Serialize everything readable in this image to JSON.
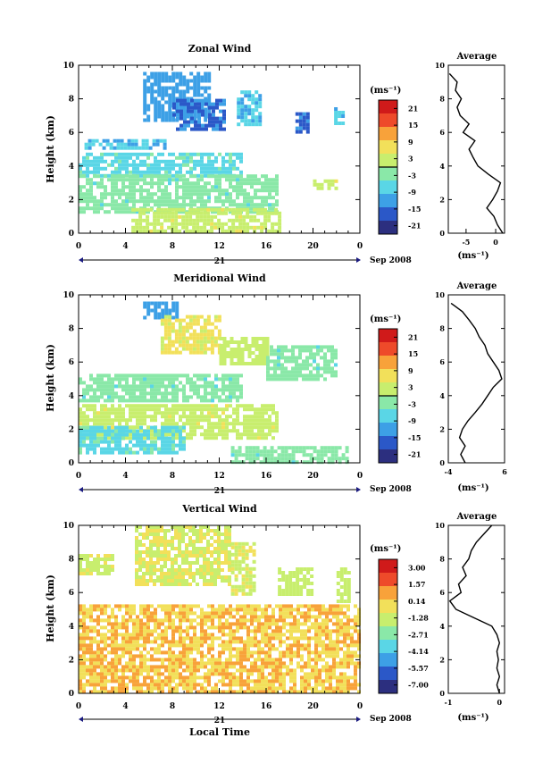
{
  "shared": {
    "ylabel": "Height (km)",
    "units_label": "(ms⁻¹)",
    "avg_xlabel": "(ms⁻¹)",
    "avg_title": "Average",
    "date_label": "21",
    "month_label": "Sep 2008",
    "xticks": [
      "0",
      "4",
      "8",
      "12",
      "16",
      "20",
      "0"
    ],
    "yticks": [
      "0",
      "2",
      "4",
      "6",
      "8",
      "10"
    ],
    "bottom_xlabel": "Local Time"
  },
  "colors": {
    "colormap": [
      "#2c2f7f",
      "#2b58c8",
      "#3da0e6",
      "#5ad6e6",
      "#8ae8a8",
      "#c8ee6e",
      "#f2e05a",
      "#f8a23a",
      "#ee4a2a",
      "#d01a1a"
    ],
    "line": "#000000"
  },
  "chart_data": [
    {
      "type": "heatmap",
      "title": "Zonal Wind",
      "ylabel": "Height (km)",
      "ylim": [
        0,
        10
      ],
      "xlim_hours": [
        0,
        24
      ],
      "colorbar_ticks": [
        "21",
        "15",
        "9",
        "3",
        "-3",
        "-9",
        "-15",
        "-21"
      ],
      "colorbar_range": [
        -24,
        24
      ],
      "zero_contour_level": 0,
      "regions": [
        {
          "h0": 5.5,
          "h1": 11,
          "z0": 6.8,
          "z1": 9.6,
          "value": -12
        },
        {
          "h0": 8,
          "h1": 12.5,
          "z0": 6.2,
          "z1": 8,
          "value": -15
        },
        {
          "h0": 13.5,
          "h1": 15.5,
          "z0": 6.5,
          "z1": 8.5,
          "value": -9
        },
        {
          "h0": 18.5,
          "h1": 19.5,
          "z0": 6.0,
          "z1": 7.2,
          "value": -15
        },
        {
          "h0": 21.8,
          "h1": 22.6,
          "z0": 6.5,
          "z1": 7.5,
          "value": -9
        },
        {
          "h0": 0.5,
          "h1": 7.5,
          "z0": 5.0,
          "z1": 5.6,
          "value": -9
        },
        {
          "h0": 0,
          "h1": 14,
          "z0": 3.5,
          "z1": 4.8,
          "value": -6
        },
        {
          "h0": 0,
          "h1": 17,
          "z0": 1.2,
          "z1": 3.5,
          "value": -3
        },
        {
          "h0": 4.5,
          "h1": 17,
          "z0": 0.2,
          "z1": 1.5,
          "value": 3
        },
        {
          "h0": 20,
          "h1": 22,
          "z0": 2.6,
          "z1": 3.2,
          "value": 3
        }
      ],
      "average_profile": {
        "xlim": [
          -8,
          1.5
        ],
        "xticks": [
          "-5",
          "0"
        ],
        "height": [
          0,
          0.5,
          1,
          1.5,
          2,
          2.5,
          3,
          3.5,
          4,
          4.5,
          5,
          5.5,
          6,
          6.5,
          7,
          7.5,
          8,
          8.5,
          9,
          9.5
        ],
        "speed": [
          1.2,
          0.3,
          -0.3,
          -1.5,
          -0.5,
          0.3,
          0.8,
          -1.2,
          -3,
          -3.8,
          -4.5,
          -3.5,
          -5.5,
          -4.5,
          -6,
          -6.5,
          -5.8,
          -6.8,
          -6.5,
          -7.8
        ]
      }
    },
    {
      "type": "heatmap",
      "title": "Meridional Wind",
      "ylabel": "Height (km)",
      "ylim": [
        0,
        10
      ],
      "xlim_hours": [
        0,
        24
      ],
      "colorbar_ticks": [
        "21",
        "15",
        "9",
        "3",
        "-3",
        "-9",
        "-15",
        "-21"
      ],
      "colorbar_range": [
        -24,
        24
      ],
      "zero_contour_level": 0,
      "regions": [
        {
          "h0": 5.5,
          "h1": 8.5,
          "z0": 8.6,
          "z1": 9.6,
          "value": -12
        },
        {
          "h0": 7,
          "h1": 12,
          "z0": 6.5,
          "z1": 8.8,
          "value": 6
        },
        {
          "h0": 12,
          "h1": 16,
          "z0": 6.0,
          "z1": 7.5,
          "value": 3
        },
        {
          "h0": 16,
          "h1": 22,
          "z0": 5.0,
          "z1": 7.0,
          "value": -3
        },
        {
          "h0": 0,
          "h1": 14,
          "z0": 3.8,
          "z1": 5.3,
          "value": -3
        },
        {
          "h0": 0,
          "h1": 17,
          "z0": 1.5,
          "z1": 3.5,
          "value": 3
        },
        {
          "h0": 0,
          "h1": 9,
          "z0": 0.6,
          "z1": 2.2,
          "value": -6
        },
        {
          "h0": 13,
          "h1": 23,
          "z0": 0.1,
          "z1": 1.0,
          "value": -3
        }
      ],
      "average_profile": {
        "xlim": [
          -4,
          6
        ],
        "xticks": [
          "-4",
          "6"
        ],
        "height": [
          0,
          0.5,
          1,
          1.5,
          2,
          2.5,
          3,
          3.5,
          4,
          4.5,
          5,
          5.5,
          6,
          6.5,
          7,
          7.5,
          8,
          8.5,
          9,
          9.5
        ],
        "speed": [
          -1,
          -1.8,
          -1,
          -2,
          -1.5,
          -0.5,
          0.8,
          2,
          3,
          4,
          5.5,
          5,
          4,
          3,
          2.5,
          1.5,
          0.8,
          -0.3,
          -1.5,
          -3.5
        ]
      }
    },
    {
      "type": "heatmap",
      "title": "Vertical Wind",
      "ylabel": "Height (km)",
      "xlabel": "Local Time",
      "ylim": [
        0,
        10
      ],
      "xlim_hours": [
        0,
        24
      ],
      "colorbar_ticks": [
        "3.00",
        "1.57",
        "0.14",
        "-1.28",
        "-2.71",
        "-4.14",
        "-5.57",
        "-7.00"
      ],
      "colorbar_range": [
        -8.43,
        4.43
      ],
      "regions": [
        {
          "h0": 4.8,
          "h1": 13,
          "z0": 6.5,
          "z1": 10,
          "value": -0.8
        },
        {
          "h0": 13,
          "h1": 15,
          "z0": 6.0,
          "z1": 9.0,
          "value": -0.8
        },
        {
          "h0": 0,
          "h1": 3,
          "z0": 7.2,
          "z1": 8.3,
          "value": -1.0
        },
        {
          "h0": 17,
          "h1": 20,
          "z0": 6.0,
          "z1": 7.5,
          "value": -1.5
        },
        {
          "h0": 22,
          "h1": 23,
          "z0": 5.5,
          "z1": 7.5,
          "value": -1.5
        },
        {
          "h0": 0,
          "h1": 24,
          "z0": 0,
          "z1": 5.3,
          "value": 0.5
        }
      ],
      "average_profile": {
        "xlim": [
          -1,
          0.1
        ],
        "xticks": [
          "-1",
          "0"
        ],
        "height": [
          0,
          0.5,
          1,
          1.5,
          2,
          2.5,
          3,
          3.5,
          4,
          4.5,
          5,
          5.5,
          6,
          6.5,
          7,
          7.5,
          8,
          8.5,
          9,
          9.5,
          10
        ],
        "speed": [
          0.0,
          -0.05,
          0.0,
          -0.05,
          -0.02,
          -0.05,
          0.0,
          -0.05,
          -0.15,
          -0.5,
          -0.85,
          -0.97,
          -0.75,
          -0.8,
          -0.65,
          -0.72,
          -0.6,
          -0.55,
          -0.45,
          -0.3,
          -0.15
        ]
      }
    }
  ]
}
